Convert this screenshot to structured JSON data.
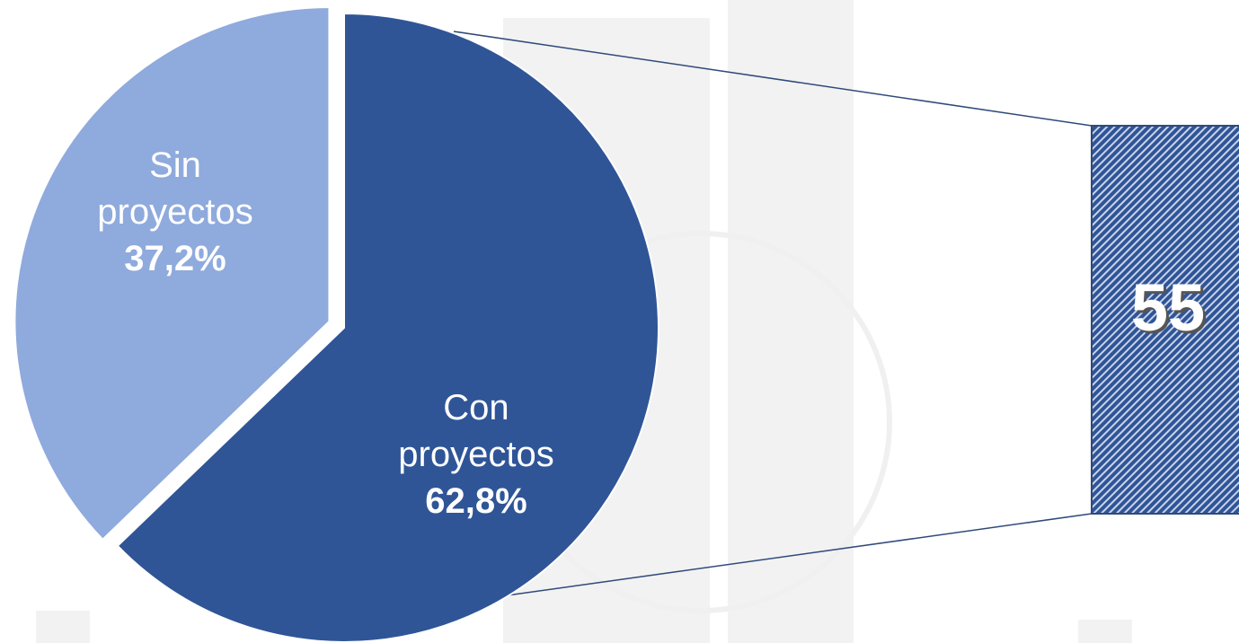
{
  "chart_data": {
    "type": "pie",
    "categories": [
      "Sin proyectos",
      "Con proyectos"
    ],
    "values": [
      37.2,
      62.8
    ],
    "value_labels": [
      "37,2%",
      "62,8%"
    ],
    "colors": [
      "#8faadc",
      "#2f5597"
    ],
    "detail": {
      "value": 55
    }
  }
}
